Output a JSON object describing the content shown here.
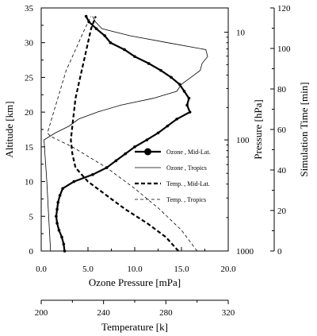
{
  "chart_data": {
    "type": "line",
    "xlabel": "Ozone Pressure [mPa]",
    "ylabel": "Altitude [km]",
    "xlim": [
      0,
      20
    ],
    "ylim": [
      0,
      35
    ],
    "x_ticks": [
      "0.0",
      "5.0",
      "10.0",
      "15.0",
      "20.0"
    ],
    "y_ticks": [
      "0",
      "5",
      "10",
      "15",
      "20",
      "25",
      "30",
      "35"
    ],
    "right_axis_pressure": {
      "label": "Pressure [hPa]",
      "ticks": [
        {
          "label": "1000",
          "altitude_km": 0
        },
        {
          "label": "100",
          "altitude_km": 16
        },
        {
          "label": "10",
          "altitude_km": 31.5
        }
      ]
    },
    "right_axis_time": {
      "label": "Simulation Time [min]",
      "range": [
        0,
        120
      ],
      "ticks": [
        "0",
        "20",
        "40",
        "60",
        "80",
        "100",
        "120"
      ]
    },
    "secondary_x_axis": {
      "label": "Temperature [k]",
      "range": [
        200,
        320
      ],
      "ticks": [
        "200",
        "240",
        "280",
        "320"
      ]
    },
    "legend_position": "right-middle",
    "series": [
      {
        "name": "Ozone , Mid-Lat.",
        "style": "thick solid with dots",
        "x_axis": "ozone_mPa",
        "points": [
          [
            2.5,
            0
          ],
          [
            2.4,
            1
          ],
          [
            2.2,
            2
          ],
          [
            1.9,
            3
          ],
          [
            1.7,
            4
          ],
          [
            1.6,
            5
          ],
          [
            1.7,
            6
          ],
          [
            1.8,
            7
          ],
          [
            2.0,
            8
          ],
          [
            2.3,
            9
          ],
          [
            3.5,
            10
          ],
          [
            5.5,
            11
          ],
          [
            7.0,
            12
          ],
          [
            8.0,
            13
          ],
          [
            9.0,
            14
          ],
          [
            10.0,
            15
          ],
          [
            11.3,
            16
          ],
          [
            12.5,
            17
          ],
          [
            13.5,
            18
          ],
          [
            14.5,
            19
          ],
          [
            15.9,
            20
          ],
          [
            15.6,
            21
          ],
          [
            15.8,
            22
          ],
          [
            15.3,
            23
          ],
          [
            14.8,
            24
          ],
          [
            13.9,
            25
          ],
          [
            12.8,
            26
          ],
          [
            11.5,
            27
          ],
          [
            10.0,
            28
          ],
          [
            8.9,
            29
          ],
          [
            7.4,
            30
          ],
          [
            6.8,
            31
          ],
          [
            5.9,
            32
          ],
          [
            5.1,
            33
          ],
          [
            4.8,
            33.8
          ]
        ]
      },
      {
        "name": "Ozone , Tropics",
        "style": "thin solid",
        "x_axis": "ozone_mPa",
        "points": [
          [
            1.0,
            0
          ],
          [
            0.8,
            5
          ],
          [
            0.6,
            10
          ],
          [
            0.4,
            14
          ],
          [
            0.3,
            16
          ],
          [
            1.5,
            17
          ],
          [
            3.0,
            18
          ],
          [
            4.0,
            19
          ],
          [
            6.0,
            20
          ],
          [
            8.5,
            21
          ],
          [
            12.0,
            22
          ],
          [
            14.5,
            23
          ],
          [
            15.0,
            24
          ],
          [
            16.0,
            25
          ],
          [
            17.0,
            26
          ],
          [
            17.2,
            27
          ],
          [
            17.8,
            28
          ],
          [
            17.6,
            29
          ],
          [
            13.5,
            30
          ],
          [
            9.5,
            31
          ],
          [
            6.5,
            32
          ],
          [
            5.8,
            33
          ],
          [
            5.5,
            33.8
          ]
        ]
      },
      {
        "name": "Temp. , Mid-Lat.",
        "style": "thick dashed",
        "x_axis": "temperature_k",
        "points": [
          [
            288,
            0
          ],
          [
            280,
            2
          ],
          [
            268,
            4
          ],
          [
            254,
            6
          ],
          [
            242,
            8
          ],
          [
            230,
            10
          ],
          [
            222,
            12
          ],
          [
            220,
            14
          ],
          [
            219,
            16
          ],
          [
            220,
            18
          ],
          [
            221,
            20
          ],
          [
            222,
            22
          ],
          [
            224,
            24
          ],
          [
            226,
            26
          ],
          [
            228,
            28
          ],
          [
            230,
            30
          ],
          [
            232,
            32
          ],
          [
            235,
            33.8
          ]
        ]
      },
      {
        "name": "Temp. , Tropics",
        "style": "thin dashed",
        "x_axis": "temperature_k",
        "points": [
          [
            300,
            0
          ],
          [
            290,
            3
          ],
          [
            276,
            6
          ],
          [
            260,
            9
          ],
          [
            242,
            12
          ],
          [
            220,
            15
          ],
          [
            206,
            16.5
          ],
          [
            204,
            17
          ],
          [
            208,
            20
          ],
          [
            212,
            23
          ],
          [
            216,
            26
          ],
          [
            222,
            29
          ],
          [
            228,
            32
          ],
          [
            232,
            33.8
          ]
        ]
      }
    ]
  }
}
